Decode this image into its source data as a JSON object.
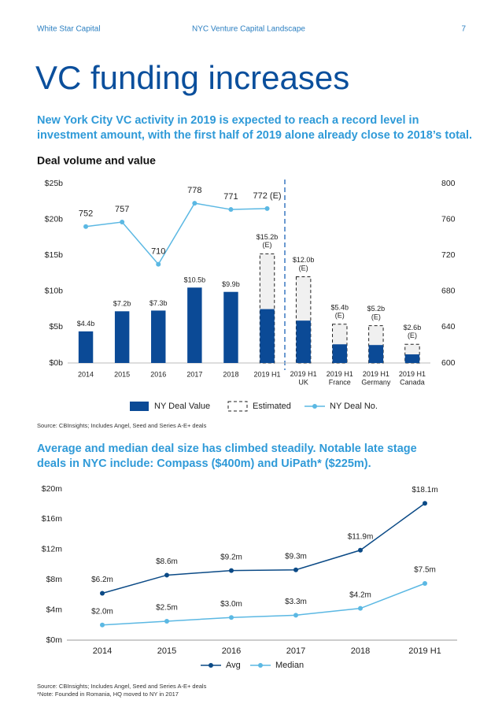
{
  "header": {
    "left": "White Star Capital",
    "center": "NYC Venture Capital Landscape",
    "page": "7"
  },
  "title": "VC funding increases",
  "intro": [
    "New York City VC activity in 2019 is expected to reach a record level in",
    "investment amount, with the first half of 2019 alone already close to 2018’s total."
  ],
  "source1": "Source: CBInsights; Includes Angel, Seed and Series A-E+ deals",
  "intro2": [
    "Average and median deal size has climbed steadily. Notable late stage",
    "deals in NYC include: Compass ($400m) and UiPath* ($225m)."
  ],
  "source2": [
    "Source: CBInsights; Includes Angel, Seed and Series A-E+ deals",
    "*Note: Founded in Romania, HQ moved to NY in 2017"
  ],
  "chart_data": [
    {
      "type": "bar",
      "title": "Deal volume and value",
      "categories": [
        "2014",
        "2015",
        "2016",
        "2017",
        "2018",
        "2019 H1",
        "2019 H1\nUK",
        "2019 H1\nFrance",
        "2019 H1\nGermany",
        "2019 H1\nCanada"
      ],
      "series": [
        {
          "name": "NY Deal Value",
          "type": "bar",
          "color": "#0b4a96",
          "values": [
            4.4,
            7.2,
            7.3,
            10.5,
            9.9,
            7.5,
            5.9,
            2.6,
            2.5,
            1.2
          ],
          "value_labels": [
            "$4.4b",
            "$7.2b",
            "$7.3b",
            "$10.5b",
            "$9.9b",
            null,
            null,
            null,
            null,
            null
          ]
        },
        {
          "name": "Estimated",
          "type": "dashed-bar",
          "color": "#f0f0f0",
          "values": [
            null,
            null,
            null,
            null,
            null,
            15.2,
            12.0,
            5.4,
            5.2,
            2.6
          ],
          "value_labels": [
            null,
            null,
            null,
            null,
            null,
            "$15.2b\n(E)",
            "$12.0b\n(E)",
            "$5.4b\n(E)",
            "$5.2b\n(E)",
            "$2.6b\n(E)"
          ]
        },
        {
          "name": "NY Deal No.",
          "type": "line",
          "axis": "y2",
          "color": "#5bb8e3",
          "values": [
            752,
            757,
            710,
            778,
            771,
            772,
            null,
            null,
            null,
            null
          ],
          "value_labels": [
            "752",
            "757",
            "710",
            "778",
            "771",
            "772 (E)",
            null,
            null,
            null,
            null
          ]
        }
      ],
      "ylim": [
        0,
        25
      ],
      "yticks": [
        {
          "value": 0,
          "label": "$0b"
        },
        {
          "value": 5,
          "label": "$5b"
        },
        {
          "value": 10,
          "label": "$10b"
        },
        {
          "value": 15,
          "label": "$15b"
        },
        {
          "value": 20,
          "label": "$20b"
        },
        {
          "value": 25,
          "label": "$25b"
        }
      ],
      "y2lim": [
        600,
        800
      ],
      "y2ticks": [
        600,
        640,
        680,
        720,
        760,
        800
      ],
      "grid": false
    },
    {
      "type": "line",
      "categories": [
        "2014",
        "2015",
        "2016",
        "2017",
        "2018",
        "2019 H1"
      ],
      "series": [
        {
          "name": "Avg",
          "color": "#0b4a86",
          "values": [
            6.2,
            8.6,
            9.2,
            9.3,
            11.9,
            18.1
          ],
          "value_labels": [
            "$6.2m",
            "$8.6m",
            "$9.2m",
            "$9.3m",
            "$11.9m",
            "$18.1m"
          ]
        },
        {
          "name": "Median",
          "color": "#5bb8e3",
          "values": [
            2.0,
            2.5,
            3.0,
            3.3,
            4.2,
            7.5
          ],
          "value_labels": [
            "$2.0m",
            "$2.5m",
            "$3.0m",
            "$3.3m",
            "$4.2m",
            "$7.5m"
          ]
        }
      ],
      "ylim": [
        0,
        20
      ],
      "yticks": [
        {
          "value": 0,
          "label": "$0m"
        },
        {
          "value": 4,
          "label": "$4m"
        },
        {
          "value": 8,
          "label": "$8m"
        },
        {
          "value": 12,
          "label": "$12m"
        },
        {
          "value": 16,
          "label": "$16m"
        },
        {
          "value": 20,
          "label": "$20m"
        }
      ],
      "grid": false
    }
  ]
}
